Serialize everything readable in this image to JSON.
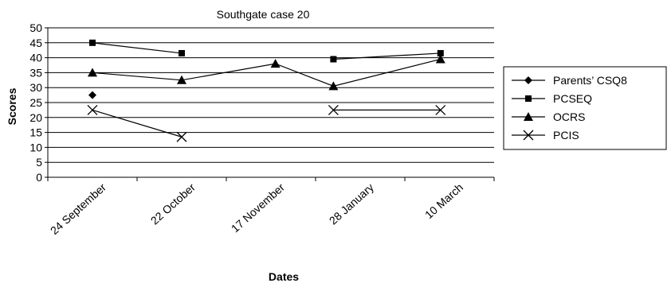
{
  "chart_data": {
    "type": "line",
    "title": "Southgate case 20",
    "xlabel": "Dates",
    "ylabel": "Scores",
    "categories": [
      "24 September",
      "22 October",
      "17 November",
      "28 January",
      "10 March"
    ],
    "ylim": [
      0,
      50
    ],
    "yticks": [
      0,
      5,
      10,
      15,
      20,
      25,
      30,
      35,
      40,
      45,
      50
    ],
    "grid": true,
    "legend_position": "right",
    "series": [
      {
        "name": "Parents’ CSQ8",
        "marker": "diamond",
        "color": "#000000",
        "points": [
          {
            "x": 0,
            "y": 27.5
          }
        ]
      },
      {
        "name": "PCSEQ",
        "marker": "square",
        "color": "#000000",
        "points": [
          {
            "x": 0,
            "y": 45
          },
          {
            "x": 1,
            "y": 41.5
          },
          {
            "x": 2.7,
            "y": 39.5
          },
          {
            "x": 3.9,
            "y": 41.5
          }
        ],
        "segments": [
          [
            0,
            1
          ],
          [
            2,
            3
          ]
        ]
      },
      {
        "name": "OCRS",
        "marker": "triangle",
        "color": "#000000",
        "points": [
          {
            "x": 0,
            "y": 35
          },
          {
            "x": 1,
            "y": 32.5
          },
          {
            "x": 2.05,
            "y": 38
          },
          {
            "x": 2.7,
            "y": 30.5
          },
          {
            "x": 3.9,
            "y": 39.5
          }
        ],
        "segments": [
          [
            0,
            1,
            2,
            3,
            4
          ]
        ]
      },
      {
        "name": "PCIS",
        "marker": "x",
        "color": "#000000",
        "points": [
          {
            "x": 0,
            "y": 22.5
          },
          {
            "x": 1,
            "y": 13.5
          },
          {
            "x": 2.7,
            "y": 22.5
          },
          {
            "x": 3.9,
            "y": 22.5
          }
        ],
        "segments": [
          [
            0,
            1
          ],
          [
            2,
            3
          ]
        ]
      }
    ]
  }
}
